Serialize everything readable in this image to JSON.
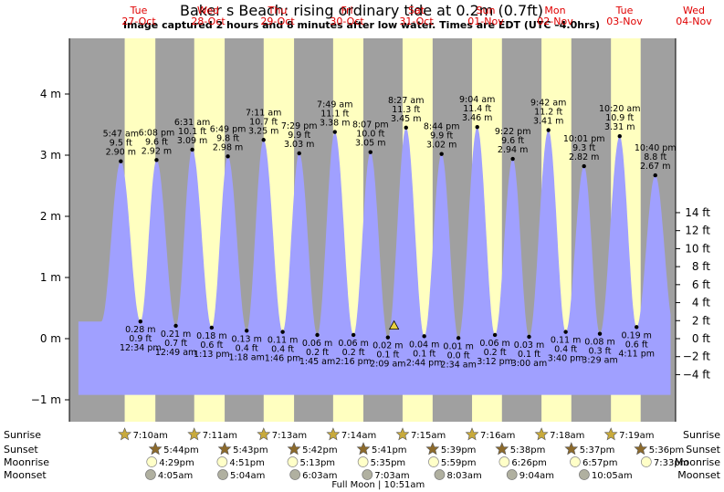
{
  "chart_data": {
    "type": "area",
    "title": "Baker s Beach: rising  ordinary tide at 0.2m (0.7ft)",
    "subtitle": "Image captured 2 hours and 8 minutes after low water. Times are EDT (UTC –4.0hrs)",
    "days": [
      {
        "dow": "Tue",
        "date": "27-Oct",
        "x": 1
      },
      {
        "dow": "Wed",
        "date": "28-Oct",
        "x": 2
      },
      {
        "dow": "Thu",
        "date": "29-Oct",
        "x": 3
      },
      {
        "dow": "Fri",
        "date": "30-Oct",
        "x": 4
      },
      {
        "dow": "Sat",
        "date": "31-Oct",
        "x": 5
      },
      {
        "dow": "Sun",
        "date": "01-Nov",
        "x": 6
      },
      {
        "dow": "Mon",
        "date": "02-Nov",
        "x": 7
      },
      {
        "dow": "Tue",
        "date": "03-Nov",
        "x": 8
      },
      {
        "dow": "Wed",
        "date": "04-Nov",
        "x": 9
      }
    ],
    "x_range_days": [
      0,
      9.35
    ],
    "ylim_m": [
      -1.3,
      5.5
    ],
    "y_left_ticks": [
      {
        "v": 4,
        "label": "4 m"
      },
      {
        "v": 3,
        "label": "3 m"
      },
      {
        "v": 2,
        "label": "2 m"
      },
      {
        "v": 1,
        "label": "1 m"
      },
      {
        "v": 0,
        "label": "0 m"
      },
      {
        "v": -1,
        "label": "−1 m"
      }
    ],
    "y_right_ticks": [
      {
        "v": 14,
        "label": "14 ft"
      },
      {
        "v": 12,
        "label": "12 ft"
      },
      {
        "v": 10,
        "label": "10 ft"
      },
      {
        "v": 8,
        "label": "8 ft"
      },
      {
        "v": 6,
        "label": "6 ft"
      },
      {
        "v": 4,
        "label": "4 ft"
      },
      {
        "v": 2,
        "label": "2 ft"
      },
      {
        "v": 0,
        "label": "0 ft"
      },
      {
        "v": -2,
        "label": "−2 ft"
      },
      {
        "v": -4,
        "label": "−4 ft"
      }
    ],
    "daylight": [
      {
        "start": 0.797,
        "end": 1.239
      },
      {
        "start": 1.799,
        "end": 2.238
      },
      {
        "start": 2.8,
        "end": 3.238
      },
      {
        "start": 3.801,
        "end": 4.237
      },
      {
        "start": 4.802,
        "end": 5.235
      },
      {
        "start": 5.803,
        "end": 6.234
      },
      {
        "start": 6.804,
        "end": 7.234
      },
      {
        "start": 7.805,
        "end": 8.233
      }
    ],
    "extremes": [
      {
        "type": "high",
        "time": "5:47 am",
        "ft": "9.5 ft",
        "m": "2.90 m",
        "x": 0.741,
        "h": 2.9
      },
      {
        "type": "low",
        "time": "12:34 pm",
        "ft": "0.9 ft",
        "m": "0.28 m",
        "x": 1.024,
        "h": 0.28
      },
      {
        "type": "high",
        "time": "6:08 pm",
        "ft": "9.6 ft",
        "m": "2.92 m",
        "x": 1.256,
        "h": 2.92
      },
      {
        "type": "low",
        "time": "12:49 am",
        "ft": "0.7 ft",
        "m": "0.21 m",
        "x": 1.534,
        "h": 0.21
      },
      {
        "type": "high",
        "time": "6:31 am",
        "ft": "10.1 ft",
        "m": "3.09 m",
        "x": 1.771,
        "h": 3.09
      },
      {
        "type": "low",
        "time": "1:13 pm",
        "ft": "0.6 ft",
        "m": "0.18 m",
        "x": 2.051,
        "h": 0.18
      },
      {
        "type": "high",
        "time": "6:49 pm",
        "ft": "9.8 ft",
        "m": "2.98 m",
        "x": 2.284,
        "h": 2.98
      },
      {
        "type": "low",
        "time": "1:18 am",
        "ft": "0.4 ft",
        "m": "0.13 m",
        "x": 2.555,
        "h": 0.13
      },
      {
        "type": "high",
        "time": "7:11 am",
        "ft": "10.7 ft",
        "m": "3.25 m",
        "x": 2.799,
        "h": 3.25
      },
      {
        "type": "low",
        "time": "1:46 pm",
        "ft": "0.4 ft",
        "m": "0.11 m",
        "x": 3.074,
        "h": 0.11
      },
      {
        "type": "high",
        "time": "7:29 pm",
        "ft": "9.9 ft",
        "m": "3.03 m",
        "x": 3.312,
        "h": 3.03
      },
      {
        "type": "low",
        "time": "1:45 am",
        "ft": "0.2 ft",
        "m": "0.06 m",
        "x": 3.573,
        "h": 0.06
      },
      {
        "type": "high",
        "time": "7:49 am",
        "ft": "11.1 ft",
        "m": "3.38 m",
        "x": 3.826,
        "h": 3.38
      },
      {
        "type": "low",
        "time": "2:16 pm",
        "ft": "0.2 ft",
        "m": "0.06 m",
        "x": 4.094,
        "h": 0.06
      },
      {
        "type": "high",
        "time": "8:07 pm",
        "ft": "10.0 ft",
        "m": "3.05 m",
        "x": 4.339,
        "h": 3.05
      },
      {
        "type": "low",
        "time": "2:09 am",
        "ft": "0.1 ft",
        "m": "0.02 m",
        "x": 4.59,
        "h": 0.02
      },
      {
        "type": "high",
        "time": "8:27 am",
        "ft": "11.3 ft",
        "m": "3.45 m",
        "x": 4.852,
        "h": 3.45
      },
      {
        "type": "low",
        "time": "2:44 pm",
        "ft": "0.1 ft",
        "m": "0.04 m",
        "x": 5.114,
        "h": 0.04
      },
      {
        "type": "high",
        "time": "8:44 pm",
        "ft": "9.9 ft",
        "m": "3.02 m",
        "x": 5.364,
        "h": 3.02
      },
      {
        "type": "low",
        "time": "2:34 am",
        "ft": "0.0 ft",
        "m": "0.01 m",
        "x": 5.607,
        "h": 0.01
      },
      {
        "type": "high",
        "time": "9:04 am",
        "ft": "11.4 ft",
        "m": "3.46 m",
        "x": 5.878,
        "h": 3.46
      },
      {
        "type": "low",
        "time": "3:12 pm",
        "ft": "0.2 ft",
        "m": "0.06 m",
        "x": 6.133,
        "h": 0.06
      },
      {
        "type": "high",
        "time": "9:22 pm",
        "ft": "9.6 ft",
        "m": "2.94 m",
        "x": 6.39,
        "h": 2.94
      },
      {
        "type": "low",
        "time": "3:00 am",
        "ft": "0.1 ft",
        "m": "0.03 m",
        "x": 6.625,
        "h": 0.03
      },
      {
        "type": "high",
        "time": "9:42 am",
        "ft": "11.2 ft",
        "m": "3.41 m",
        "x": 6.904,
        "h": 3.41
      },
      {
        "type": "low",
        "time": "3:40 pm",
        "ft": "0.4 ft",
        "m": "0.11 m",
        "x": 7.153,
        "h": 0.11
      },
      {
        "type": "high",
        "time": "10:01 pm",
        "ft": "9.3 ft",
        "m": "2.82 m",
        "x": 7.417,
        "h": 2.82
      },
      {
        "type": "low",
        "time": "3:29 am",
        "ft": "0.3 ft",
        "m": "0.08 m",
        "x": 7.645,
        "h": 0.08
      },
      {
        "type": "high",
        "time": "10:20 am",
        "ft": "10.9 ft",
        "m": "3.31 m",
        "x": 7.931,
        "h": 3.31
      },
      {
        "type": "low",
        "time": "4:11 pm",
        "ft": "0.6 ft",
        "m": "0.19 m",
        "x": 8.174,
        "h": 0.19
      },
      {
        "type": "high",
        "time": "10:40 pm",
        "ft": "8.8 ft",
        "m": "2.67 m",
        "x": 8.444,
        "h": 2.67
      }
    ],
    "current_marker": {
      "x": 4.679,
      "h": 0.2
    },
    "astro": {
      "rows": [
        "Sunrise",
        "Sunset",
        "Moonrise",
        "Moonset"
      ],
      "sunrise": [
        {
          "x": 0.797,
          "label": "7:10am"
        },
        {
          "x": 1.799,
          "label": "7:11am"
        },
        {
          "x": 2.8,
          "label": "7:13am"
        },
        {
          "x": 3.801,
          "label": "7:14am"
        },
        {
          "x": 4.802,
          "label": "7:15am"
        },
        {
          "x": 5.803,
          "label": "7:16am"
        },
        {
          "x": 6.804,
          "label": "7:18am"
        },
        {
          "x": 7.805,
          "label": "7:19am"
        }
      ],
      "sunset": [
        {
          "x": 1.239,
          "label": "5:44pm"
        },
        {
          "x": 2.238,
          "label": "5:43pm"
        },
        {
          "x": 3.238,
          "label": "5:42pm"
        },
        {
          "x": 4.237,
          "label": "5:41pm"
        },
        {
          "x": 5.235,
          "label": "5:39pm"
        },
        {
          "x": 6.234,
          "label": "5:38pm"
        },
        {
          "x": 7.234,
          "label": "5:37pm"
        },
        {
          "x": 8.233,
          "label": "5:36pm"
        }
      ],
      "moonrise": [
        {
          "x": 1.187,
          "label": "4:29pm"
        },
        {
          "x": 2.202,
          "label": "4:51pm"
        },
        {
          "x": 3.217,
          "label": "5:13pm"
        },
        {
          "x": 4.232,
          "label": "5:35pm"
        },
        {
          "x": 5.249,
          "label": "5:59pm"
        },
        {
          "x": 6.268,
          "label": "6:26pm"
        },
        {
          "x": 7.289,
          "label": "6:57pm"
        },
        {
          "x": 8.314,
          "label": "7:33pm"
        }
      ],
      "moonset": [
        {
          "x": 1.17,
          "label": "4:05am"
        },
        {
          "x": 2.211,
          "label": "5:04am"
        },
        {
          "x": 3.252,
          "label": "6:03am"
        },
        {
          "x": 4.293,
          "label": "7:03am"
        },
        {
          "x": 5.335,
          "label": "8:03am"
        },
        {
          "x": 6.378,
          "label": "9:04am"
        },
        {
          "x": 7.42,
          "label": "10:05am"
        }
      ]
    },
    "moon_phase": {
      "text": "Full Moon | 10:51am",
      "x": 4.452
    },
    "colors": {
      "night": "#a0a0a0",
      "day": "#ffffc0",
      "water": "#a0a0ff",
      "text": "#000000",
      "day_label": "#e00000",
      "sun_icon": "#c8aa3c",
      "sunset_icon": "#8c6a2c",
      "moonrise_icon": "#ffffc8",
      "moonset_icon": "#b0b0a0"
    }
  }
}
